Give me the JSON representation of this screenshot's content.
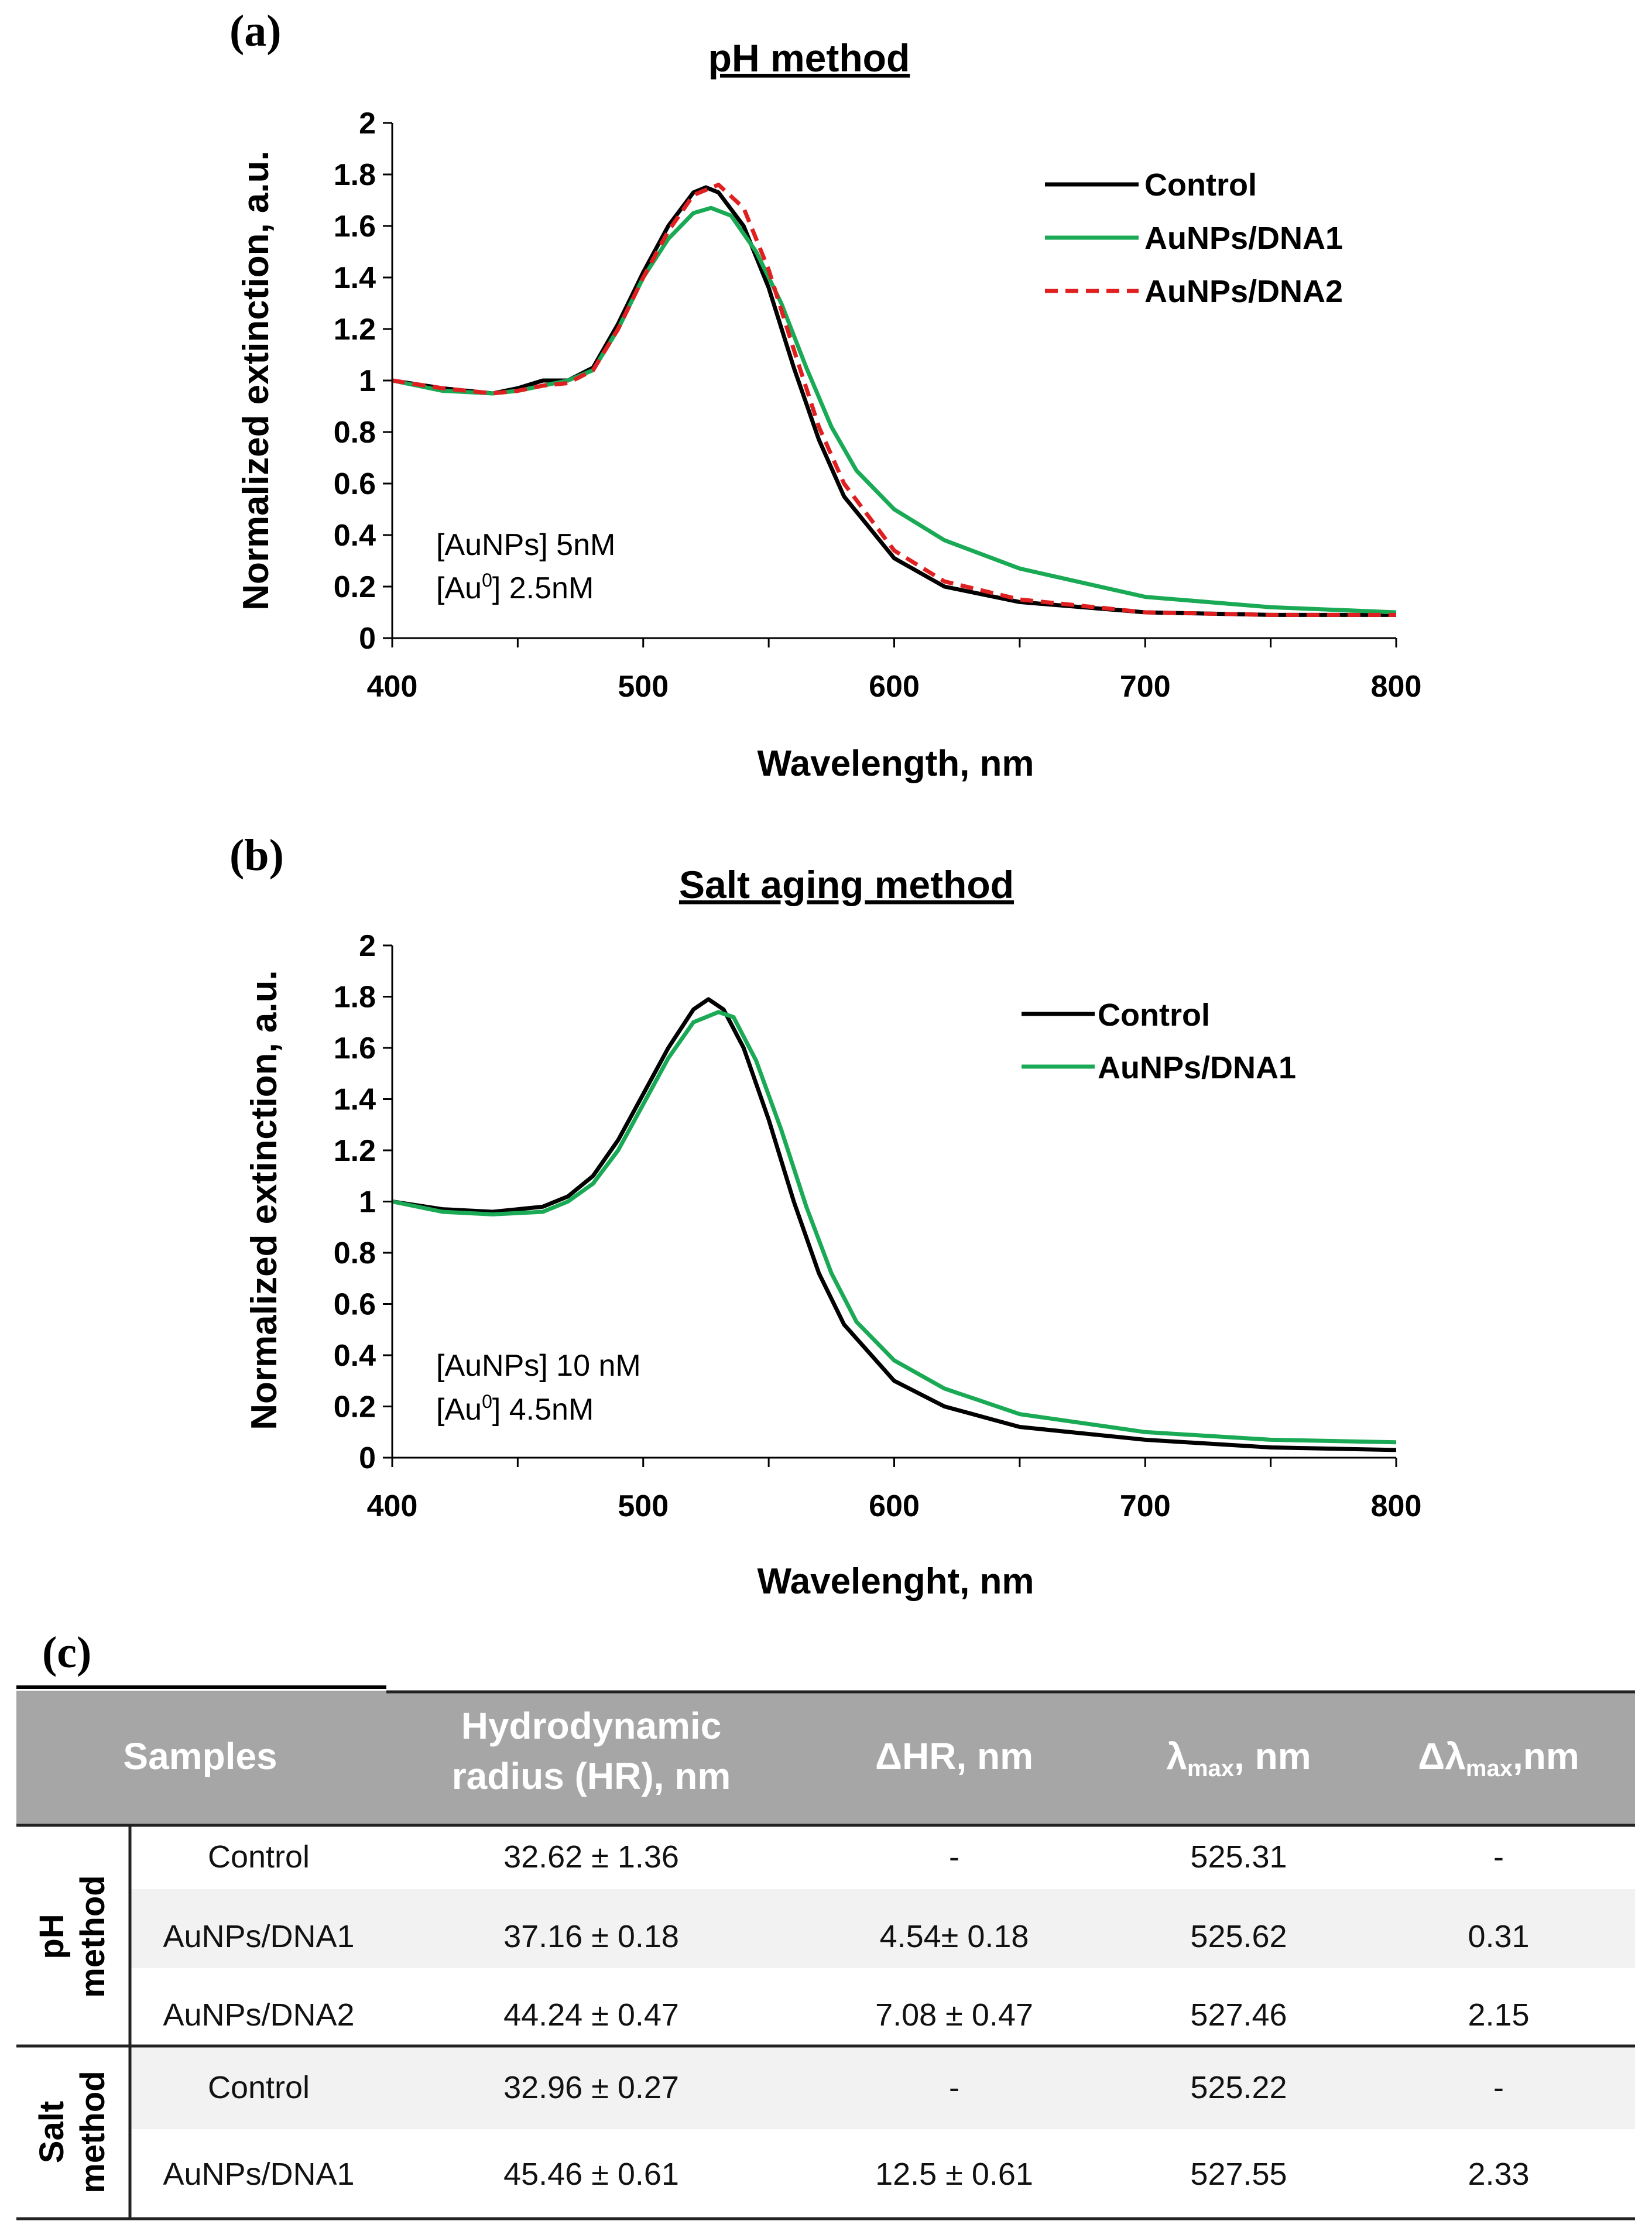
{
  "chart_data": [
    {
      "panel_label": "(a)",
      "type": "line",
      "title": "pH method",
      "xlabel": "Wavelength, nm",
      "ylabel": "Normalized  extinction, a.u.",
      "xlim": [
        400,
        800
      ],
      "ylim": [
        0,
        2
      ],
      "xticks": [
        "400",
        "500",
        "600",
        "700",
        "800"
      ],
      "yticks": [
        "0",
        "0.2",
        "0.4",
        "0.6",
        "0.8",
        "1",
        "1.2",
        "1.4",
        "1.6",
        "1.8",
        "2"
      ],
      "legend_position": "top-right",
      "annotation": {
        "line1": "[AuNPs] 5nM",
        "line2_prefix": "[Au",
        "line2_sup": "0",
        "line2_suffix": "] 2.5nM"
      },
      "series": [
        {
          "name": "Control",
          "color": "#000000",
          "dash": "solid",
          "x": [
            400,
            420,
            440,
            450,
            460,
            470,
            480,
            490,
            500,
            510,
            520,
            525,
            530,
            540,
            550,
            560,
            570,
            580,
            600,
            620,
            650,
            700,
            750,
            800
          ],
          "y": [
            1.0,
            0.97,
            0.95,
            0.97,
            1.0,
            1.0,
            1.05,
            1.22,
            1.42,
            1.6,
            1.73,
            1.75,
            1.73,
            1.6,
            1.36,
            1.05,
            0.77,
            0.55,
            0.31,
            0.2,
            0.14,
            0.1,
            0.09,
            0.09
          ]
        },
        {
          "name": "AuNPs/DNA1",
          "color": "#1aaa55",
          "dash": "solid",
          "x": [
            400,
            420,
            440,
            450,
            460,
            470,
            480,
            490,
            500,
            510,
            520,
            527,
            535,
            545,
            555,
            565,
            575,
            585,
            600,
            620,
            650,
            700,
            750,
            800
          ],
          "y": [
            1.0,
            0.96,
            0.95,
            0.96,
            0.98,
            1.0,
            1.04,
            1.2,
            1.4,
            1.55,
            1.65,
            1.67,
            1.64,
            1.5,
            1.3,
            1.05,
            0.82,
            0.65,
            0.5,
            0.38,
            0.27,
            0.16,
            0.12,
            0.1
          ]
        },
        {
          "name": "AuNPs/DNA2",
          "color": "#e02020",
          "dash": "dashed",
          "x": [
            400,
            420,
            440,
            450,
            460,
            470,
            480,
            490,
            500,
            510,
            520,
            530,
            540,
            550,
            560,
            570,
            580,
            600,
            620,
            650,
            700,
            750,
            800
          ],
          "y": [
            1.0,
            0.97,
            0.95,
            0.96,
            0.98,
            0.99,
            1.04,
            1.2,
            1.4,
            1.58,
            1.72,
            1.76,
            1.67,
            1.43,
            1.12,
            0.82,
            0.6,
            0.34,
            0.22,
            0.15,
            0.1,
            0.09,
            0.09
          ]
        }
      ]
    },
    {
      "panel_label": "(b)",
      "type": "line",
      "title": "Salt aging method",
      "xlabel": "Wavelenght, nm",
      "ylabel": "Normalized extinction, a.u.",
      "xlim": [
        400,
        800
      ],
      "ylim": [
        0,
        2
      ],
      "xticks": [
        "400",
        "500",
        "600",
        "700",
        "800"
      ],
      "yticks": [
        "0",
        "0.2",
        "0.4",
        "0.6",
        "0.8",
        "1",
        "1.2",
        "1.4",
        "1.6",
        "1.8",
        "2"
      ],
      "legend_position": "top-right",
      "annotation": {
        "line1": "[AuNPs] 10 nM",
        "line2_prefix": "[Au",
        "line2_sup": "0",
        "line2_suffix": "] 4.5nM"
      },
      "series": [
        {
          "name": "Control",
          "color": "#000000",
          "dash": "solid",
          "x": [
            400,
            420,
            440,
            460,
            470,
            480,
            490,
            500,
            510,
            520,
            526,
            532,
            540,
            550,
            560,
            570,
            580,
            600,
            620,
            650,
            700,
            750,
            800
          ],
          "y": [
            1.0,
            0.97,
            0.96,
            0.98,
            1.02,
            1.1,
            1.24,
            1.42,
            1.6,
            1.75,
            1.79,
            1.75,
            1.6,
            1.32,
            1.0,
            0.72,
            0.52,
            0.3,
            0.2,
            0.12,
            0.07,
            0.04,
            0.03
          ]
        },
        {
          "name": "AuNPs/DNA1",
          "color": "#1aaa55",
          "dash": "solid",
          "x": [
            400,
            420,
            440,
            460,
            470,
            480,
            490,
            500,
            510,
            520,
            530,
            536,
            545,
            555,
            565,
            575,
            585,
            600,
            620,
            650,
            700,
            750,
            800
          ],
          "y": [
            1.0,
            0.96,
            0.95,
            0.96,
            1.0,
            1.07,
            1.2,
            1.38,
            1.56,
            1.7,
            1.74,
            1.72,
            1.55,
            1.28,
            0.98,
            0.72,
            0.53,
            0.38,
            0.27,
            0.17,
            0.1,
            0.07,
            0.06
          ]
        }
      ]
    }
  ],
  "table": {
    "panel_label": "(c)",
    "headers": {
      "samples": "Samples",
      "hr_line1": "Hydrodynamic",
      "hr_line2": "radius (HR), nm",
      "dhr": "ΔHR, nm",
      "lmax_pre": "λ",
      "lmax_sub": "max",
      "lmax_post": ", nm",
      "dlmax_pre": "Δλ",
      "dlmax_sub": "max",
      "dlmax_post": ",nm"
    },
    "groups": [
      {
        "label_line1": "pH",
        "label_line2": "method",
        "rows": [
          {
            "sample": "Control",
            "hr": "32.62 ± 1.36",
            "dhr": "-",
            "lmax": "525.31",
            "dlmax": "-"
          },
          {
            "sample": "AuNPs/DNA1",
            "hr": "37.16 ± 0.18",
            "dhr": "4.54± 0.18",
            "lmax": "525.62",
            "dlmax": "0.31"
          },
          {
            "sample": "AuNPs/DNA2",
            "hr": "44.24 ± 0.47",
            "dhr": "7.08 ± 0.47",
            "lmax": "527.46",
            "dlmax": "2.15"
          }
        ]
      },
      {
        "label_line1": "Salt",
        "label_line2": "method",
        "rows": [
          {
            "sample": "Control",
            "hr": "32.96 ± 0.27",
            "dhr": "-",
            "lmax": "525.22",
            "dlmax": "-"
          },
          {
            "sample": "AuNPs/DNA1",
            "hr": "45.46 ± 0.61",
            "dhr": "12.5 ± 0.61",
            "lmax": "527.55",
            "dlmax": "2.33"
          }
        ]
      }
    ]
  }
}
